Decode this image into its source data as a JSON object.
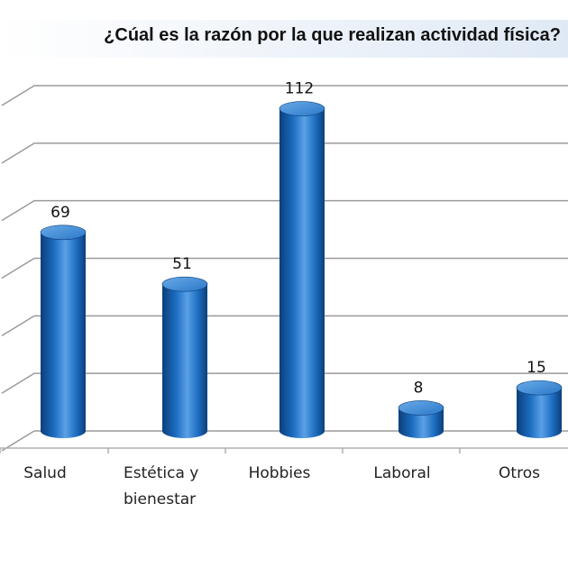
{
  "chart_data": {
    "type": "bar",
    "title": "¿Cúal es la razón por la que realizan actividad física?",
    "xlabel": "",
    "ylabel": "",
    "categories": [
      [
        "Salud"
      ],
      [
        "Estética y",
        "bienestar"
      ],
      [
        "Hobbies"
      ],
      [
        "Laboral"
      ],
      [
        "Otros"
      ]
    ],
    "values": [
      69,
      51,
      112,
      8,
      15
    ],
    "value_labels": [
      "69",
      "51",
      "112",
      "8",
      "15"
    ],
    "ylim": [
      0,
      120
    ],
    "grid": true,
    "legend": "none",
    "bar_style": "3d-cylinder",
    "colors": {
      "bar": "#1c6cc0",
      "bar_dark": "#0c3f7a",
      "bar_light": "#5aa0e6",
      "gridline": "#9a9a9a",
      "title_band": "#dfe9f5"
    }
  }
}
